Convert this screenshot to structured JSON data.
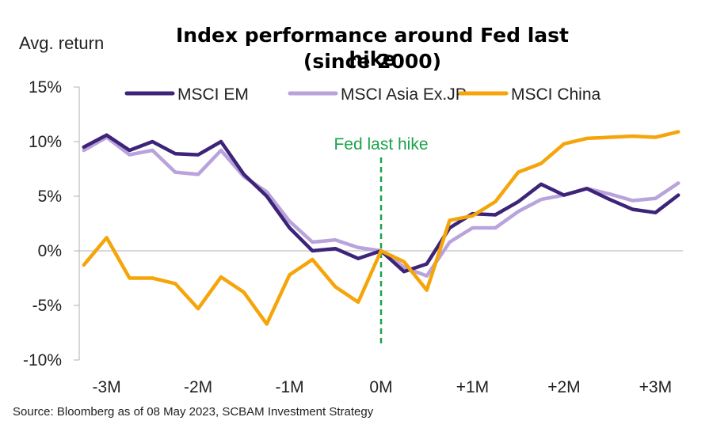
{
  "chart_data": {
    "type": "line",
    "title": "Index performance around Fed last hike",
    "subtitle": "(since 2000)",
    "ylabel": "Avg. return",
    "ylim": [
      -10,
      15
    ],
    "y_ticks": [
      15,
      10,
      5,
      0,
      -5,
      -10
    ],
    "y_tick_labels": [
      "15%",
      "10%",
      "5%",
      "0%",
      "-5%",
      "-10%"
    ],
    "xlim": [
      -3.3,
      3.3
    ],
    "x_ticks": [
      -3,
      -2,
      -1,
      0,
      1,
      2,
      3
    ],
    "x_tick_labels": [
      "-3M",
      "-2M",
      "-1M",
      "0M",
      "+1M",
      "+2M",
      "+3M"
    ],
    "grid": false,
    "legend_position": "top",
    "x": [
      -3.25,
      -3.0,
      -2.75,
      -2.5,
      -2.25,
      -2.0,
      -1.75,
      -1.5,
      -1.25,
      -1.0,
      -0.75,
      -0.5,
      -0.25,
      0.0,
      0.25,
      0.5,
      0.75,
      1.0,
      1.25,
      1.5,
      1.75,
      2.0,
      2.25,
      2.5,
      2.75,
      3.0,
      3.25
    ],
    "series": [
      {
        "name": "MSCI EM",
        "color": "#3d2478",
        "values": [
          9.5,
          10.6,
          9.2,
          10.0,
          8.9,
          8.8,
          10.0,
          7.0,
          5.0,
          2.1,
          0.0,
          0.2,
          -0.7,
          0.0,
          -1.9,
          -1.2,
          2.1,
          3.4,
          3.3,
          4.5,
          6.1,
          5.1,
          5.7,
          4.7,
          3.8,
          3.5,
          5.1
        ]
      },
      {
        "name": "MSCI Asia Ex.JP",
        "color": "#b8a3dc",
        "values": [
          9.2,
          10.4,
          8.8,
          9.2,
          7.2,
          7.0,
          9.2,
          6.8,
          5.4,
          2.7,
          0.8,
          1.0,
          0.3,
          0.0,
          -1.5,
          -2.3,
          0.8,
          2.1,
          2.1,
          3.6,
          4.7,
          5.1,
          5.7,
          5.2,
          4.6,
          4.8,
          6.2
        ]
      },
      {
        "name": "MSCI China",
        "color": "#f5a50a",
        "values": [
          -1.3,
          1.2,
          -2.5,
          -2.5,
          -3.0,
          -5.3,
          -2.4,
          -3.8,
          -6.7,
          -2.2,
          -0.8,
          -3.3,
          -4.7,
          0.0,
          -1.0,
          -3.6,
          2.8,
          3.2,
          4.5,
          7.2,
          8.0,
          9.8,
          10.3,
          10.4,
          10.5,
          10.4,
          10.9
        ]
      }
    ],
    "annotations": [
      {
        "text": "Fed last hike",
        "x": 0,
        "color": "#1aa34a"
      }
    ],
    "source": "Source: Bloomberg as of 08 May 2023, SCBAM Investment Strategy"
  }
}
